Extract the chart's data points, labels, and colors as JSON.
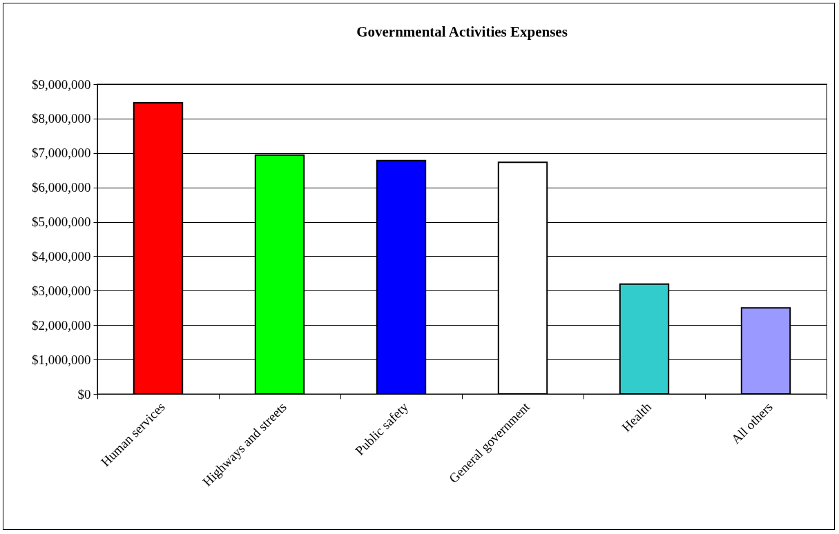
{
  "chart_data": {
    "type": "bar",
    "title": "Governmental Activities Expenses",
    "categories": [
      "Human services",
      "Highways and streets",
      "Public safety",
      "General government",
      "Health",
      "All others"
    ],
    "values": [
      8460000,
      6940000,
      6780000,
      6730000,
      3190000,
      2500000
    ],
    "colors": [
      "#ff0000",
      "#00ff00",
      "#0000ff",
      "#ffffff",
      "#33cccc",
      "#9999ff"
    ],
    "ylim": [
      0,
      9000000
    ],
    "yticks": [
      {
        "value": 0,
        "label": "$0"
      },
      {
        "value": 1000000,
        "label": "$1,000,000"
      },
      {
        "value": 2000000,
        "label": "$2,000,000"
      },
      {
        "value": 3000000,
        "label": "$3,000,000"
      },
      {
        "value": 4000000,
        "label": "$4,000,000"
      },
      {
        "value": 5000000,
        "label": "$5,000,000"
      },
      {
        "value": 6000000,
        "label": "$6,000,000"
      },
      {
        "value": 7000000,
        "label": "$7,000,000"
      },
      {
        "value": 8000000,
        "label": "$8,000,000"
      },
      {
        "value": 9000000,
        "label": "$9,000,000"
      }
    ],
    "grid": "y",
    "legend": false
  }
}
